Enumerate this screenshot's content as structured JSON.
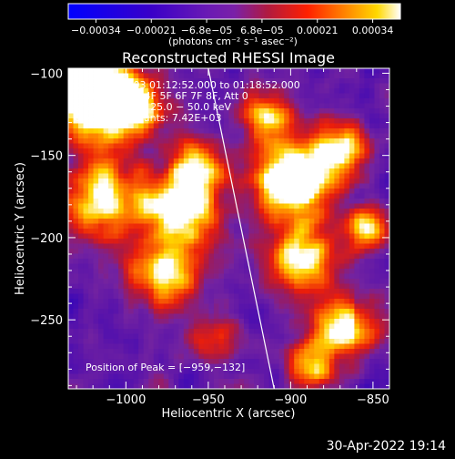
{
  "chart_data": {
    "type": "heatmap",
    "title": "Reconstructed RHESSI Image",
    "xlabel": "Heliocentric X (arcsec)",
    "ylabel": "Heliocentric Y (arcsec)",
    "xlim": [
      -1035,
      -840
    ],
    "ylim": [
      -292,
      -97
    ],
    "x_ticks": [
      -1000,
      -950,
      -900,
      -850
    ],
    "x_tick_labels": [
      "−1000",
      "−950",
      "−900",
      "−850"
    ],
    "y_ticks": [
      -100,
      -150,
      -200,
      -250
    ],
    "y_tick_labels": [
      "−100",
      "−150",
      "−200",
      "−250"
    ],
    "colorbar": {
      "min": -0.00034,
      "max": 0.00034,
      "tick_labels": [
        "−0.00034",
        "−0.00021",
        "−6.8e−05",
        "6.8e−05",
        "0.00021",
        "0.00034"
      ],
      "unit_label": "(photons cm⁻² s⁻¹ asec⁻²)"
    },
    "limb_line": [
      [
        -950,
        -97
      ],
      [
        -910,
        -292
      ]
    ],
    "info_lines": [
      "19−Apr−2003 01:12:52.000 to 01:18:52.000",
      "Detectors: 3F 4F 5F 6F 7F 8F, Att 0",
      "Energy Range: 25.0 − 50.0 keV",
      "Clean     Total counts: 7.42E+03"
    ],
    "peak_label": "Position of Peak = [−959,−132]",
    "grid": false,
    "legend": "none"
  },
  "footer": {
    "timestamp": "30-Apr-2022 19:14"
  }
}
